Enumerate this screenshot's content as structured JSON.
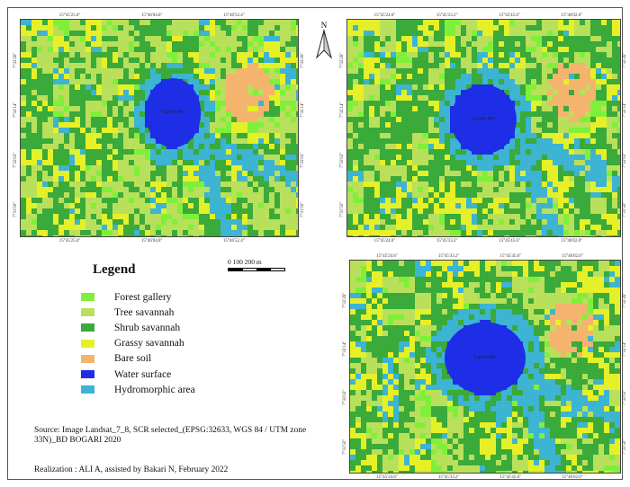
{
  "north_arrow": {
    "letter": "N",
    "icon": "north-arrow-icon"
  },
  "legend": {
    "title": "Legend",
    "items": [
      {
        "label": "Forest gallery",
        "color": "#7ff03a"
      },
      {
        "label": "Tree savannah",
        "color": "#b9e05a"
      },
      {
        "label": "Shrub savannah",
        "color": "#3aaa3a"
      },
      {
        "label": "Grassy savannah",
        "color": "#e6f028"
      },
      {
        "label": "Bare soil",
        "color": "#f4b46e"
      },
      {
        "label": "Water surface",
        "color": "#1e2ee6"
      },
      {
        "label": "Hydromorphic area",
        "color": "#3cb4d2"
      }
    ]
  },
  "scale": {
    "label": "0   100 200  m"
  },
  "source_text": "Source: Image Landsat_7_8, SCR selected_(EPSG:32633, WGS 84 / UTM zone 33N)_BD BOGARI 2020",
  "realisation_text": "Realization : ALI A, assisted by Bakari N, February 2022",
  "maps": [
    {
      "id": "map-top-left",
      "top_ticks": [
        "15°45'25.6\"",
        "15°46'04.8\"",
        "15°46'52.4\""
      ],
      "bottom_ticks": [
        "15°45'25.6\"",
        "15°46'04.8\"",
        "15°46'52.4\""
      ],
      "left_ticks": [
        "7°32'26\"",
        "7°32'14\"",
        "7°32'02\"",
        "7°31'50\""
      ],
      "right_ticks": [
        "7°32'26\"",
        "7°32'14\"",
        "7°32'02\"",
        "7°31'50\""
      ],
      "lake_label": "Lagoon lake"
    },
    {
      "id": "map-top-right",
      "top_ticks": [
        "15°45'24.6\"",
        "15°45'33.2\"",
        "15°45'45.6\"",
        "15°46'02.0\""
      ],
      "bottom_ticks": [
        "15°45'24.6\"",
        "15°45'33.2\"",
        "15°45'45.6\"",
        "15°46'02.0\""
      ],
      "left_ticks": [
        "7°32'26\"",
        "7°32'14\"",
        "7°32'02\"",
        "7°31'50\""
      ],
      "right_ticks": [
        "7°32'26\"",
        "7°32'14\"",
        "7°32'02\"",
        "7°31'50\""
      ],
      "lake_label": "Lagoon lake"
    },
    {
      "id": "map-bottom-right",
      "top_ticks": [
        "15°45'24.6\"",
        "15°45'33.2\"",
        "15°45'45.6\"",
        "15°46'02.0\""
      ],
      "bottom_ticks": [
        "15°45'24.6\"",
        "15°45'33.2\"",
        "15°45'45.6\"",
        "15°46'02.0\""
      ],
      "left_ticks": [
        "7°32'26\"",
        "7°32'14\"",
        "7°32'02\"",
        "7°31'50\""
      ],
      "right_ticks": [
        "7°32'26\"",
        "7°32'14\"",
        "7°32'02\"",
        "7°31'50\""
      ],
      "lake_label": "Lagoon lake"
    }
  ]
}
